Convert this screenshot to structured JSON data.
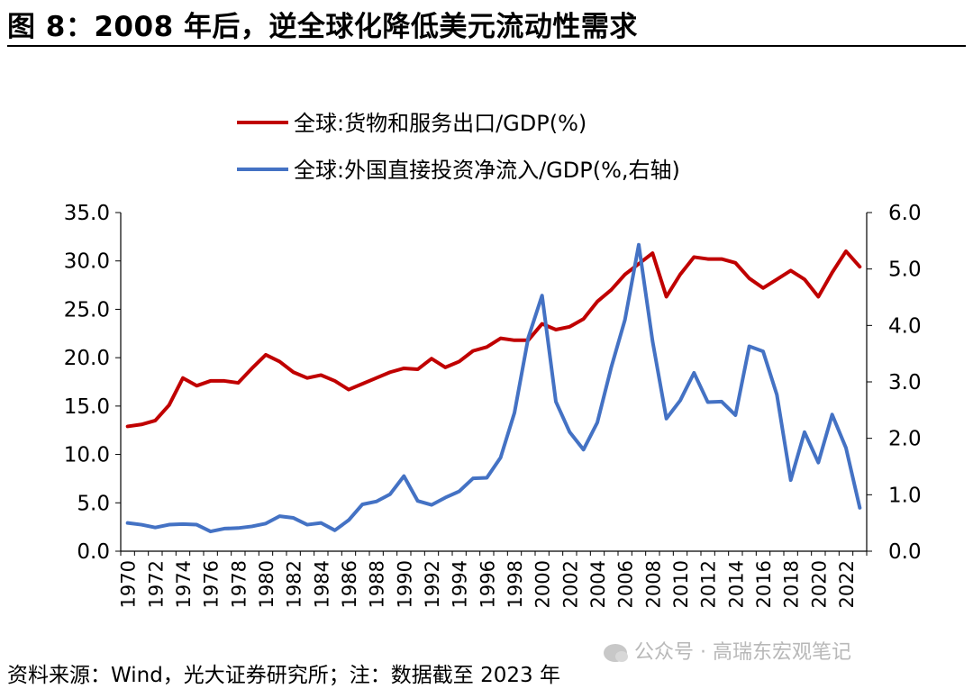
{
  "title": "图 8：2008 年后，逆全球化降低美元流动性需求",
  "source": "资料来源：Wind，光大证券研究所；注：数据截至 2023 年",
  "watermark": "公众号 · 高瑞东宏观笔记",
  "chart_data": {
    "type": "line",
    "title": "",
    "xlabel": "",
    "ylabel": "",
    "x": [
      1970,
      1971,
      1972,
      1973,
      1974,
      1975,
      1976,
      1977,
      1978,
      1979,
      1980,
      1981,
      1982,
      1983,
      1984,
      1985,
      1986,
      1987,
      1988,
      1989,
      1990,
      1991,
      1992,
      1993,
      1994,
      1995,
      1996,
      1997,
      1998,
      1999,
      2000,
      2001,
      2002,
      2003,
      2004,
      2005,
      2006,
      2007,
      2008,
      2009,
      2010,
      2011,
      2012,
      2013,
      2014,
      2015,
      2016,
      2017,
      2018,
      2019,
      2020,
      2021,
      2022,
      2023
    ],
    "x_tick_labels": [
      "1970",
      "1972",
      "1974",
      "1976",
      "1978",
      "1980",
      "1982",
      "1984",
      "1986",
      "1988",
      "1990",
      "1992",
      "1994",
      "1996",
      "1998",
      "2000",
      "2002",
      "2004",
      "2006",
      "2008",
      "2010",
      "2012",
      "2014",
      "2016",
      "2018",
      "2020",
      "2022"
    ],
    "y_left": {
      "lim": [
        0,
        35
      ],
      "ticks": [
        "0.0",
        "5.0",
        "10.0",
        "15.0",
        "20.0",
        "25.0",
        "30.0",
        "35.0"
      ]
    },
    "y_right": {
      "lim": [
        0,
        6
      ],
      "ticks": [
        "0.0",
        "1.0",
        "2.0",
        "3.0",
        "4.0",
        "5.0",
        "6.0"
      ]
    },
    "grid": false,
    "legend_position": "top-center",
    "series": [
      {
        "name": "全球:货物和服务出口/GDP(%)",
        "axis": "left",
        "color": "#c00000",
        "values": [
          12.9,
          13.1,
          13.5,
          15.1,
          17.9,
          17.1,
          17.6,
          17.6,
          17.4,
          18.9,
          20.3,
          19.6,
          18.5,
          17.9,
          18.2,
          17.6,
          16.7,
          17.3,
          17.9,
          18.5,
          18.9,
          18.8,
          19.9,
          19.0,
          19.6,
          20.7,
          21.1,
          22.0,
          21.8,
          21.8,
          23.5,
          22.9,
          23.2,
          24.0,
          25.8,
          27.0,
          28.6,
          29.7,
          30.8,
          26.3,
          28.6,
          30.4,
          30.2,
          30.2,
          29.8,
          28.2,
          27.2,
          28.1,
          29.0,
          28.1,
          26.3,
          28.8,
          31.0,
          29.4
        ]
      },
      {
        "name": "全球:外国直接投资净流入/GDP(%,右轴)",
        "axis": "right",
        "color": "#4472c4",
        "values": [
          0.5,
          0.47,
          0.42,
          0.47,
          0.48,
          0.47,
          0.35,
          0.4,
          0.41,
          0.44,
          0.49,
          0.62,
          0.59,
          0.47,
          0.5,
          0.37,
          0.55,
          0.83,
          0.88,
          1.01,
          1.33,
          0.89,
          0.82,
          0.95,
          1.06,
          1.29,
          1.3,
          1.66,
          2.45,
          3.78,
          4.53,
          2.65,
          2.11,
          1.8,
          2.28,
          3.25,
          4.1,
          5.43,
          3.72,
          2.35,
          2.67,
          3.16,
          2.64,
          2.65,
          2.41,
          3.63,
          3.54,
          2.77,
          1.26,
          2.11,
          1.57,
          2.42,
          1.83,
          0.77
        ]
      }
    ]
  }
}
